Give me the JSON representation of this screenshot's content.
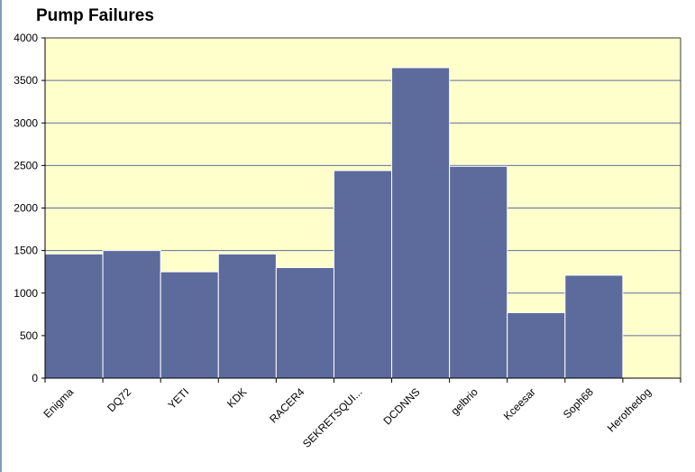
{
  "chart_data": {
    "type": "bar",
    "title": "Pump Failures",
    "xlabel": "",
    "ylabel": "",
    "categories": [
      "Enigma",
      "DQ72",
      "YETI",
      "KDK",
      "RACER4",
      "SEKRETSQUI...",
      "DCDNNS",
      "gelbrio",
      "Kceesar",
      "Soph68",
      "Herothedog"
    ],
    "values": [
      1460,
      1500,
      1250,
      1460,
      1300,
      2440,
      3650,
      2490,
      770,
      1210,
      0
    ],
    "ylim": [
      0,
      4000
    ],
    "yticks": [
      0,
      500,
      1000,
      1500,
      2000,
      2500,
      3000,
      3500,
      4000
    ],
    "grid": true,
    "legend": "none",
    "colors": {
      "bar": "#5c6b9c",
      "bar_border": "#ffffff",
      "plot_background": "#ffffcc",
      "grid": "#5f6ea0",
      "axis": "#000000"
    }
  }
}
